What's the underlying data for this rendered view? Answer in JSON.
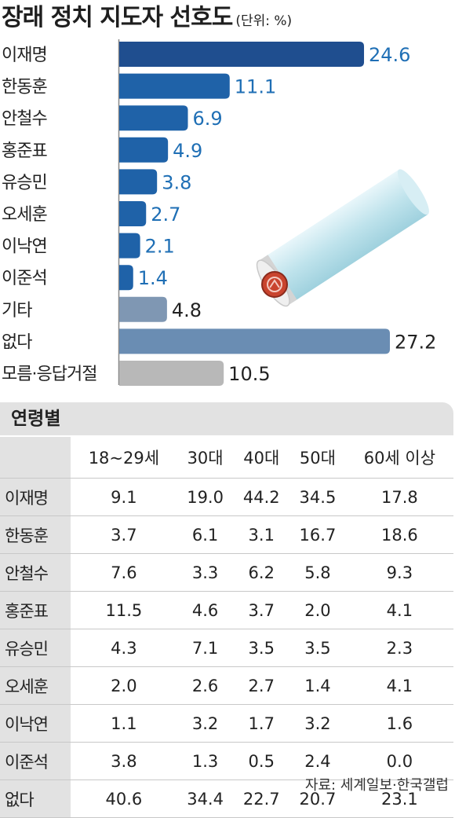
{
  "header": {
    "title": "장래 정치 지도자 선호도",
    "unit": "(단위: %)"
  },
  "chart_data": {
    "type": "bar",
    "orientation": "horizontal",
    "title": "장래 정치 지도자 선호도",
    "unit": "%",
    "categories": [
      "이재명",
      "한동훈",
      "안철수",
      "홍준표",
      "유승민",
      "오세훈",
      "이낙연",
      "이준석",
      "기타",
      "없다",
      "모름·응답거절"
    ],
    "values": [
      24.6,
      11.1,
      6.9,
      4.9,
      3.8,
      2.7,
      2.1,
      1.4,
      4.8,
      27.2,
      10.5
    ],
    "value_labels": [
      "24.6",
      "11.1",
      "6.9",
      "4.9",
      "3.8",
      "2.7",
      "2.1",
      "1.4",
      "4.8",
      "27.2",
      "10.5"
    ],
    "xlim": [
      0,
      27.2
    ],
    "grid": false,
    "colors": {
      "candidate_bar": "#1f62a8",
      "top_bar": "#1f4e8f",
      "candidate_label": "#1f6fb5",
      "other_bar": "#7f97b3",
      "none_bar": "#6a8db3",
      "unknown_bar": "#b8b8b8",
      "neutral_label": "#222222"
    }
  },
  "age_table": {
    "section_title": "연령별",
    "columns": [
      "18~29세",
      "30대",
      "40대",
      "50대",
      "60세 이상"
    ],
    "rows": [
      {
        "name": "이재명",
        "values": [
          "9.1",
          "19.0",
          "44.2",
          "34.5",
          "17.8"
        ]
      },
      {
        "name": "한동훈",
        "values": [
          "3.7",
          "6.1",
          "3.1",
          "16.7",
          "18.6"
        ]
      },
      {
        "name": "안철수",
        "values": [
          "7.6",
          "3.3",
          "6.2",
          "5.8",
          "9.3"
        ]
      },
      {
        "name": "홍준표",
        "values": [
          "11.5",
          "4.6",
          "3.7",
          "2.0",
          "4.1"
        ]
      },
      {
        "name": "유승민",
        "values": [
          "4.3",
          "7.1",
          "3.5",
          "3.5",
          "2.3"
        ]
      },
      {
        "name": "오세훈",
        "values": [
          "2.0",
          "2.6",
          "2.7",
          "1.4",
          "4.1"
        ]
      },
      {
        "name": "이낙연",
        "values": [
          "1.1",
          "3.2",
          "1.7",
          "3.2",
          "1.6"
        ]
      },
      {
        "name": "이준석",
        "values": [
          "3.8",
          "1.3",
          "0.5",
          "2.4",
          "0.0"
        ]
      },
      {
        "name": "없다",
        "values": [
          "40.6",
          "34.4",
          "22.7",
          "20.7",
          "23.1"
        ]
      }
    ]
  },
  "source": "자료: 세계일보·한국갤럽",
  "illustration": {
    "icon": "ballot-stamp-icon"
  }
}
